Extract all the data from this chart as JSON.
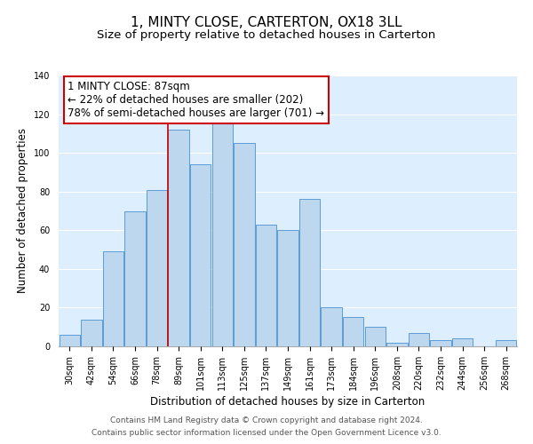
{
  "title": "1, MINTY CLOSE, CARTERTON, OX18 3LL",
  "subtitle": "Size of property relative to detached houses in Carterton",
  "xlabel": "Distribution of detached houses by size in Carterton",
  "ylabel": "Number of detached properties",
  "bar_color": "#bdd7ee",
  "bar_edge_color": "#5b9bd5",
  "background_color": "#ffffff",
  "plot_bg_color": "#ddeeff",
  "categories": [
    "30sqm",
    "42sqm",
    "54sqm",
    "66sqm",
    "78sqm",
    "89sqm",
    "101sqm",
    "113sqm",
    "125sqm",
    "137sqm",
    "149sqm",
    "161sqm",
    "173sqm",
    "184sqm",
    "196sqm",
    "208sqm",
    "220sqm",
    "232sqm",
    "244sqm",
    "256sqm",
    "268sqm"
  ],
  "values": [
    6,
    14,
    49,
    70,
    81,
    112,
    94,
    115,
    105,
    63,
    60,
    76,
    20,
    15,
    10,
    2,
    7,
    3,
    4,
    0,
    3
  ],
  "vline_index": 5,
  "vline_color": "#cc0000",
  "annotation_text": "1 MINTY CLOSE: 87sqm\n← 22% of detached houses are smaller (202)\n78% of semi-detached houses are larger (701) →",
  "annotation_box_color": "#ffffff",
  "annotation_box_edge_color": "#cc0000",
  "footer_line1": "Contains HM Land Registry data © Crown copyright and database right 2024.",
  "footer_line2": "Contains public sector information licensed under the Open Government Licence v3.0.",
  "ylim": [
    0,
    140
  ],
  "yticks": [
    0,
    20,
    40,
    60,
    80,
    100,
    120,
    140
  ],
  "title_fontsize": 11,
  "subtitle_fontsize": 9.5,
  "axis_label_fontsize": 8.5,
  "tick_fontsize": 7,
  "annotation_fontsize": 8.5,
  "footer_fontsize": 6.5
}
